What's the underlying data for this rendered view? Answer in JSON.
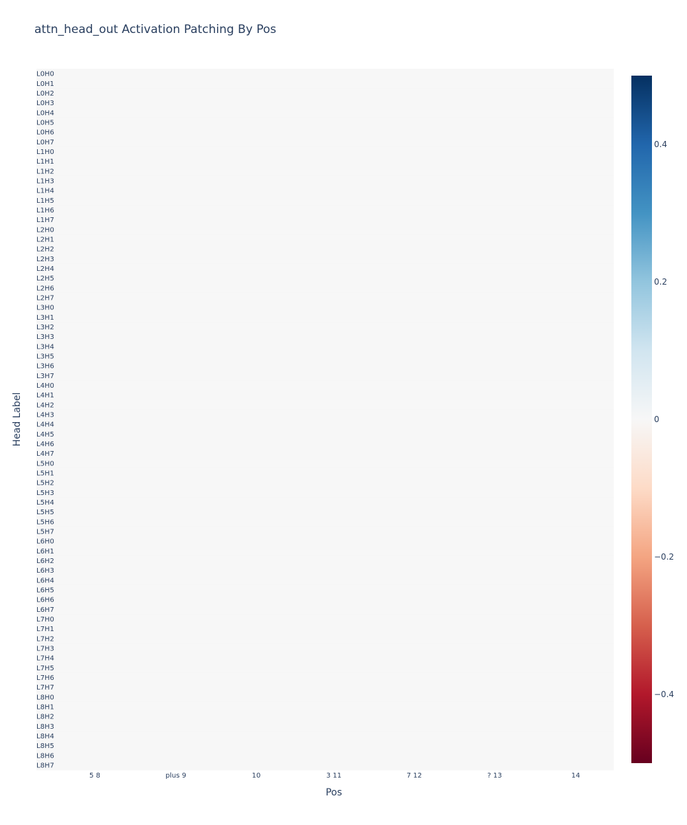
{
  "chart_data": {
    "type": "heatmap",
    "title": "attn_head_out Activation Patching By Pos",
    "xlabel": "Pos",
    "ylabel": "Head Label",
    "x_tick_labels": [
      "5 8",
      "plus 9",
      "10",
      "3 11",
      "7 12",
      "? 13",
      "14"
    ],
    "y_labels": [
      "L0H0",
      "L0H1",
      "L0H2",
      "L0H3",
      "L0H4",
      "L0H5",
      "L0H6",
      "L0H7",
      "L1H0",
      "L1H1",
      "L1H2",
      "L1H3",
      "L1H4",
      "L1H5",
      "L1H6",
      "L1H7",
      "L2H0",
      "L2H1",
      "L2H2",
      "L2H3",
      "L2H4",
      "L2H5",
      "L2H6",
      "L2H7",
      "L3H0",
      "L3H1",
      "L3H2",
      "L3H3",
      "L3H4",
      "L3H5",
      "L3H6",
      "L3H7",
      "L4H0",
      "L4H1",
      "L4H2",
      "L4H3",
      "L4H4",
      "L4H5",
      "L4H6",
      "L4H7",
      "L5H0",
      "L5H1",
      "L5H2",
      "L5H3",
      "L5H4",
      "L5H5",
      "L5H6",
      "L5H7",
      "L6H0",
      "L6H1",
      "L6H2",
      "L6H3",
      "L6H4",
      "L6H5",
      "L6H6",
      "L6H7",
      "L7H0",
      "L7H1",
      "L7H2",
      "L7H3",
      "L7H4",
      "L7H5",
      "L7H6",
      "L7H7",
      "L8H0",
      "L8H1",
      "L8H2",
      "L8H3",
      "L8H4",
      "L8H5",
      "L8H6",
      "L8H7"
    ],
    "values_uniform": 0,
    "colorbar": {
      "range": [
        -0.5,
        0.5
      ],
      "ticks": [
        0.4,
        0.2,
        0,
        -0.2,
        -0.4
      ],
      "tick_labels": [
        "0.4",
        "0.2",
        "0",
        "−0.2",
        "−0.4"
      ],
      "colorscale": "RdBu"
    },
    "grid": false
  },
  "colors": {
    "cell_zero": "#f7f7f7",
    "text": "#2a3f5f"
  }
}
